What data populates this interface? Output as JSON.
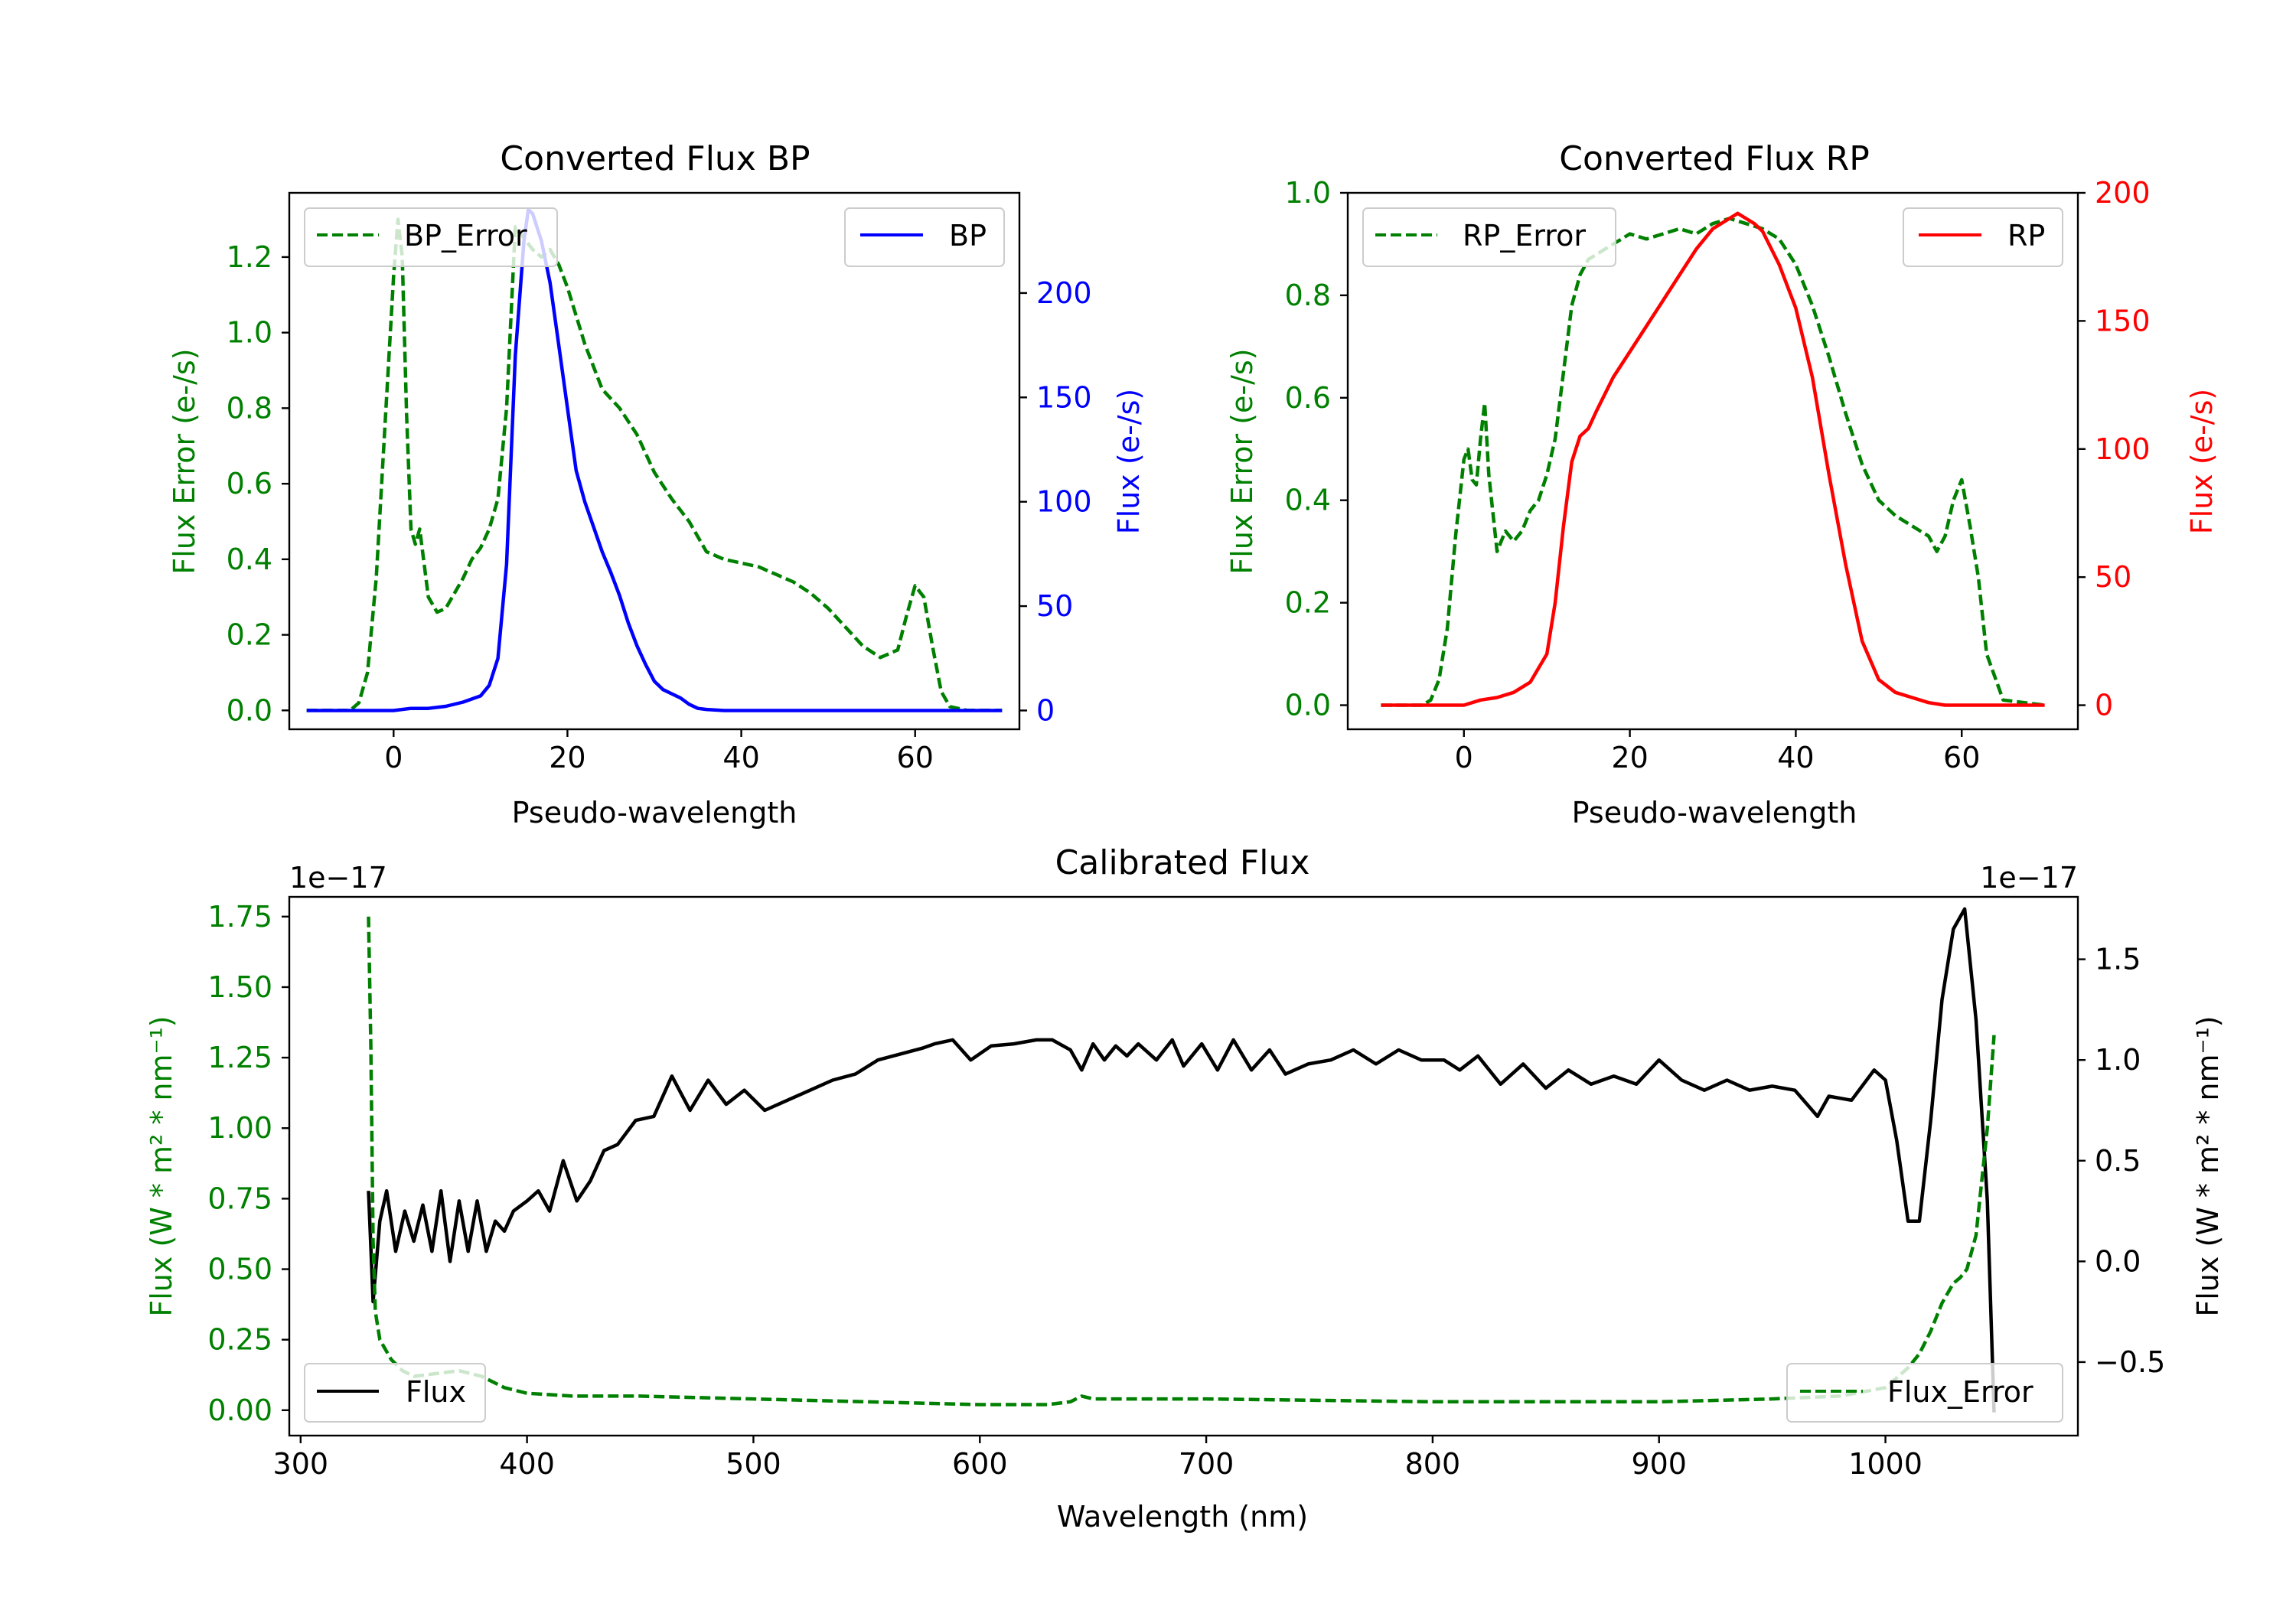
{
  "colors": {
    "green": "#008000",
    "blue": "#0000ff",
    "red": "#ff0000",
    "black": "#000000"
  },
  "chart_data": [
    {
      "type": "line",
      "id": "bp",
      "title": "Converted Flux BP",
      "xlabel": "Pseudo-wavelength",
      "ylabel_left": "Flux Error (e-/s)",
      "ylabel_right": "Flux (e-/s)",
      "xlim": [
        -12,
        72
      ],
      "ylim_left": [
        -0.05,
        1.37
      ],
      "ylim_right": [
        -9,
        248
      ],
      "x_ticks": [
        0,
        20,
        40,
        60
      ],
      "x_tick_labels": [
        "0",
        "20",
        "40",
        "60"
      ],
      "y_left_ticks": [
        0,
        0.2,
        0.4,
        0.6,
        0.8,
        1.0,
        1.2
      ],
      "y_left_tick_labels": [
        "0.0",
        "0.2",
        "0.4",
        "0.6",
        "0.8",
        "1.0",
        "1.2"
      ],
      "y_right_ticks": [
        0,
        50,
        100,
        150,
        200
      ],
      "y_right_tick_labels": [
        "0",
        "50",
        "100",
        "150",
        "200"
      ],
      "series": [
        {
          "name": "BP_Error",
          "axis": "left",
          "color": "#008000",
          "dashed": true,
          "x": [
            -10,
            -5,
            -4,
            -3,
            -2,
            -1,
            0,
            0.5,
            1,
            1.5,
            2,
            2.5,
            3,
            4,
            5,
            6,
            7,
            8,
            9,
            10,
            11,
            12,
            13,
            14,
            15,
            16,
            17,
            18,
            19,
            20,
            22,
            24,
            26,
            28,
            30,
            32,
            34,
            36,
            38,
            40,
            42,
            44,
            46,
            48,
            50,
            52,
            54,
            56,
            58,
            59,
            60,
            61,
            62,
            63,
            64,
            66,
            70
          ],
          "y": [
            0,
            0,
            0.02,
            0.1,
            0.35,
            0.75,
            1.15,
            1.3,
            1.2,
            0.78,
            0.48,
            0.44,
            0.48,
            0.3,
            0.26,
            0.27,
            0.31,
            0.35,
            0.4,
            0.43,
            0.48,
            0.56,
            0.8,
            1.28,
            1.25,
            1.22,
            1.2,
            1.22,
            1.18,
            1.12,
            0.97,
            0.85,
            0.8,
            0.73,
            0.63,
            0.56,
            0.5,
            0.42,
            0.4,
            0.39,
            0.38,
            0.36,
            0.34,
            0.31,
            0.27,
            0.22,
            0.17,
            0.14,
            0.16,
            0.25,
            0.33,
            0.3,
            0.17,
            0.05,
            0.01,
            0,
            0
          ]
        },
        {
          "name": "BP",
          "axis": "right",
          "color": "#0000ff",
          "dashed": false,
          "x": [
            -10,
            -5,
            0,
            2,
            4,
            6,
            8,
            10,
            11,
            12,
            13,
            14,
            15,
            15.5,
            16,
            17,
            18,
            19,
            20,
            21,
            22,
            23,
            24,
            25,
            26,
            27,
            28,
            29,
            30,
            31,
            32,
            33,
            34,
            35,
            36,
            38,
            40,
            42,
            44,
            50,
            55,
            60,
            65,
            70
          ],
          "y": [
            0,
            0,
            0,
            1,
            1,
            2,
            4,
            7,
            12,
            25,
            70,
            170,
            225,
            240,
            238,
            225,
            205,
            175,
            145,
            115,
            100,
            88,
            76,
            66,
            55,
            42,
            31,
            22,
            14,
            10,
            8,
            6,
            3,
            1,
            0.5,
            0,
            0,
            0,
            0,
            0,
            0,
            0,
            0,
            0
          ]
        }
      ],
      "legend_left": {
        "label": "BP_Error",
        "position": "upper left"
      },
      "legend_right": {
        "label": "BP",
        "position": "upper right"
      }
    },
    {
      "type": "line",
      "id": "rp",
      "title": "Converted Flux RP",
      "xlabel": "Pseudo-wavelength",
      "ylabel_left": "Flux Error (e-/s)",
      "ylabel_right": "Flux (e-/s)",
      "xlim": [
        -14,
        74
      ],
      "ylim_left": [
        -0.047,
        1.0
      ],
      "ylim_right": [
        -9.4,
        200
      ],
      "x_ticks": [
        0,
        20,
        40,
        60
      ],
      "x_tick_labels": [
        "0",
        "20",
        "40",
        "60"
      ],
      "y_left_ticks": [
        0,
        0.2,
        0.4,
        0.6,
        0.8,
        1.0
      ],
      "y_left_tick_labels": [
        "0.0",
        "0.2",
        "0.4",
        "0.6",
        "0.8",
        "1.0"
      ],
      "y_right_ticks": [
        0,
        50,
        100,
        150,
        200
      ],
      "y_right_tick_labels": [
        "0",
        "50",
        "100",
        "150",
        "200"
      ],
      "series": [
        {
          "name": "RP_Error",
          "axis": "left",
          "color": "#008000",
          "dashed": true,
          "x": [
            -10,
            -5,
            -4,
            -3,
            -2,
            -1,
            0,
            0.5,
            1,
            1.5,
            2,
            2.5,
            3,
            4,
            5,
            6,
            7,
            8,
            9,
            10,
            11,
            12,
            13,
            14,
            15,
            16,
            17,
            18,
            19,
            20,
            22,
            24,
            26,
            28,
            30,
            32,
            34,
            36,
            38,
            40,
            42,
            44,
            46,
            48,
            50,
            52,
            54,
            55,
            56,
            57,
            58,
            59,
            60,
            61,
            62,
            63,
            65,
            70
          ],
          "y": [
            0,
            0,
            0.01,
            0.05,
            0.15,
            0.33,
            0.48,
            0.5,
            0.44,
            0.43,
            0.52,
            0.59,
            0.45,
            0.3,
            0.34,
            0.32,
            0.34,
            0.38,
            0.4,
            0.45,
            0.52,
            0.65,
            0.78,
            0.84,
            0.87,
            0.88,
            0.89,
            0.9,
            0.91,
            0.92,
            0.91,
            0.92,
            0.93,
            0.92,
            0.94,
            0.95,
            0.94,
            0.93,
            0.91,
            0.86,
            0.78,
            0.68,
            0.57,
            0.47,
            0.4,
            0.37,
            0.35,
            0.34,
            0.33,
            0.3,
            0.33,
            0.4,
            0.44,
            0.35,
            0.25,
            0.1,
            0.01,
            0
          ]
        },
        {
          "name": "RP",
          "axis": "right",
          "color": "#ff0000",
          "dashed": false,
          "x": [
            -10,
            -5,
            0,
            2,
            4,
            6,
            8,
            10,
            11,
            12,
            13,
            14,
            15,
            16,
            18,
            20,
            22,
            24,
            26,
            28,
            30,
            32,
            33,
            34,
            35,
            36,
            38,
            40,
            42,
            44,
            46,
            48,
            50,
            52,
            54,
            56,
            58,
            60,
            62,
            65,
            70
          ],
          "y": [
            0,
            0,
            0,
            2,
            3,
            5,
            9,
            20,
            40,
            70,
            95,
            105,
            108,
            115,
            128,
            138,
            148,
            158,
            168,
            178,
            186,
            190,
            192,
            190,
            188,
            185,
            172,
            155,
            128,
            90,
            55,
            25,
            10,
            5,
            3,
            1,
            0,
            0,
            0,
            0,
            0
          ]
        }
      ],
      "legend_left": {
        "label": "RP_Error",
        "position": "upper left"
      },
      "legend_right": {
        "label": "RP",
        "position": "upper right"
      }
    },
    {
      "type": "line",
      "id": "cal",
      "title": "Calibrated Flux",
      "xlabel": "Wavelength (nm)",
      "ylabel_left": "Flux (W * m² * nm⁻¹)",
      "ylabel_right": "Flux (W * m² * nm⁻¹)",
      "offset_left": "1e−17",
      "offset_right": "1e−17",
      "xlim": [
        295,
        1085
      ],
      "ylim_left": [
        -0.09,
        1.82
      ],
      "ylim_right": [
        -0.865,
        1.81
      ],
      "x_ticks": [
        300,
        400,
        500,
        600,
        700,
        800,
        900,
        1000
      ],
      "x_tick_labels": [
        "300",
        "400",
        "500",
        "600",
        "700",
        "800",
        "900",
        "1000"
      ],
      "y_left_ticks": [
        0,
        0.25,
        0.5,
        0.75,
        1.0,
        1.25,
        1.5,
        1.75
      ],
      "y_left_tick_labels": [
        "0.00",
        "0.25",
        "0.50",
        "0.75",
        "1.00",
        "1.25",
        "1.50",
        "1.75"
      ],
      "y_right_ticks": [
        -0.5,
        0,
        0.5,
        1.0,
        1.5
      ],
      "y_right_tick_labels": [
        "−0.5",
        "0.0",
        "0.5",
        "1.0",
        "1.5"
      ],
      "series": [
        {
          "name": "Flux",
          "axis": "right",
          "color": "#000000",
          "dashed": false,
          "x": [
            330,
            332,
            335,
            338,
            342,
            346,
            350,
            354,
            358,
            362,
            366,
            370,
            374,
            378,
            382,
            386,
            390,
            394,
            400,
            405,
            410,
            416,
            422,
            428,
            434,
            440,
            448,
            456,
            464,
            472,
            480,
            488,
            496,
            505,
            515,
            525,
            535,
            545,
            555,
            565,
            575,
            580,
            588,
            596,
            605,
            615,
            625,
            632,
            640,
            645,
            650,
            655,
            660,
            665,
            670,
            678,
            685,
            690,
            698,
            705,
            712,
            720,
            728,
            735,
            745,
            755,
            765,
            775,
            785,
            795,
            805,
            812,
            820,
            830,
            840,
            850,
            860,
            870,
            880,
            890,
            900,
            910,
            920,
            930,
            940,
            950,
            960,
            970,
            975,
            985,
            995,
            1000,
            1005,
            1010,
            1015,
            1020,
            1025,
            1030,
            1035,
            1040,
            1045,
            1048
          ],
          "y": [
            0.35,
            -0.2,
            0.2,
            0.35,
            0.05,
            0.25,
            0.1,
            0.28,
            0.05,
            0.35,
            0.0,
            0.3,
            0.05,
            0.3,
            0.05,
            0.2,
            0.15,
            0.25,
            0.3,
            0.35,
            0.25,
            0.5,
            0.3,
            0.4,
            0.55,
            0.58,
            0.7,
            0.72,
            0.92,
            0.75,
            0.9,
            0.78,
            0.85,
            0.75,
            0.8,
            0.85,
            0.9,
            0.93,
            1.0,
            1.03,
            1.06,
            1.08,
            1.1,
            1.0,
            1.07,
            1.08,
            1.1,
            1.1,
            1.05,
            0.95,
            1.08,
            1.0,
            1.07,
            1.02,
            1.08,
            1.0,
            1.1,
            0.97,
            1.08,
            0.95,
            1.1,
            0.95,
            1.05,
            0.93,
            0.98,
            1.0,
            1.05,
            0.98,
            1.05,
            1.0,
            1.0,
            0.95,
            1.02,
            0.88,
            0.98,
            0.86,
            0.95,
            0.88,
            0.92,
            0.88,
            1.0,
            0.9,
            0.85,
            0.9,
            0.85,
            0.87,
            0.85,
            0.72,
            0.82,
            0.8,
            0.95,
            0.9,
            0.6,
            0.2,
            0.2,
            0.7,
            1.3,
            1.65,
            1.75,
            1.2,
            0.3,
            -0.75
          ]
        },
        {
          "name": "Flux_Error",
          "axis": "left",
          "color": "#008000",
          "dashed": true,
          "x": [
            330,
            331,
            332,
            333,
            335,
            340,
            345,
            350,
            360,
            370,
            380,
            390,
            400,
            420,
            450,
            500,
            550,
            600,
            630,
            640,
            645,
            650,
            700,
            800,
            900,
            950,
            980,
            1000,
            1010,
            1015,
            1020,
            1025,
            1030,
            1033,
            1036,
            1040,
            1045,
            1048
          ],
          "y": [
            1.75,
            1.3,
            0.6,
            0.35,
            0.25,
            0.18,
            0.14,
            0.12,
            0.13,
            0.14,
            0.12,
            0.08,
            0.06,
            0.05,
            0.05,
            0.04,
            0.03,
            0.02,
            0.02,
            0.03,
            0.05,
            0.04,
            0.04,
            0.03,
            0.03,
            0.04,
            0.05,
            0.08,
            0.15,
            0.2,
            0.28,
            0.38,
            0.45,
            0.47,
            0.5,
            0.62,
            1.0,
            1.33
          ]
        }
      ],
      "legend_left": {
        "label": "Flux",
        "position": "lower left"
      },
      "legend_right": {
        "label": "Flux_Error",
        "position": "lower right"
      }
    }
  ]
}
